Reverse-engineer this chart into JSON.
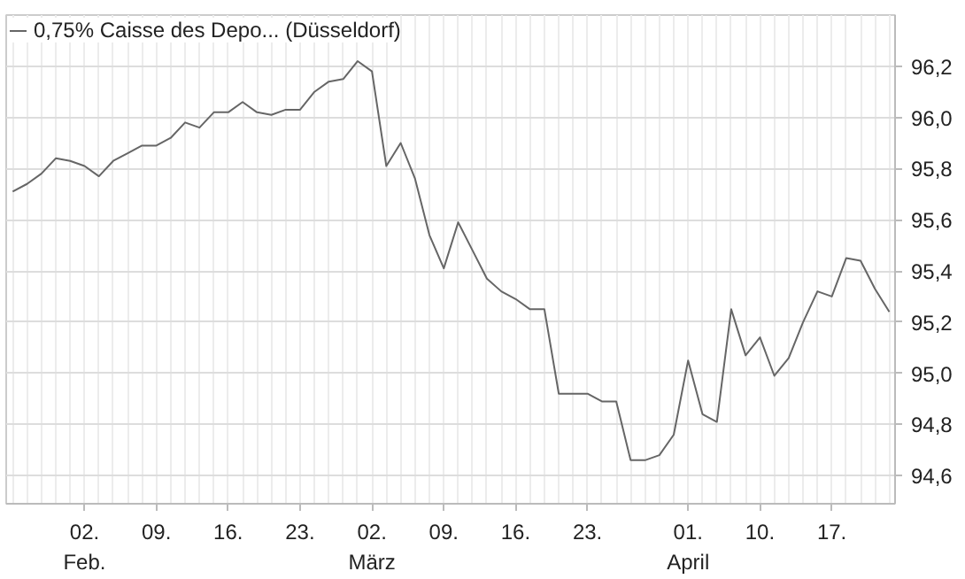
{
  "chart_data": {
    "type": "line",
    "categories": [
      null,
      null,
      null,
      null,
      null,
      "02.\nFeb.",
      null,
      null,
      null,
      null,
      "09.",
      null,
      null,
      null,
      null,
      "16.",
      null,
      null,
      null,
      null,
      "23.",
      null,
      null,
      null,
      null,
      "02.\nMärz",
      null,
      null,
      null,
      null,
      "09.",
      null,
      null,
      null,
      null,
      "16.",
      null,
      null,
      null,
      null,
      "23.",
      null,
      null,
      null,
      null,
      null,
      null,
      "01.\nApril",
      null,
      null,
      null,
      null,
      "10.",
      null,
      null,
      null,
      null,
      "17.",
      null,
      null,
      null,
      null
    ],
    "series": [
      {
        "name": "0,75% Caisse des Depo... (Düsseldorf)",
        "color": "#666666",
        "values": [
          95.71,
          95.74,
          95.78,
          95.84,
          95.83,
          95.81,
          95.77,
          95.83,
          95.86,
          95.89,
          95.89,
          95.92,
          95.98,
          95.96,
          96.02,
          96.02,
          96.06,
          96.02,
          96.01,
          96.03,
          96.03,
          96.1,
          96.14,
          96.15,
          96.22,
          96.18,
          95.81,
          95.9,
          95.76,
          95.54,
          95.41,
          95.59,
          95.48,
          95.37,
          95.32,
          95.29,
          95.25,
          95.25,
          94.92,
          94.92,
          94.92,
          94.89,
          94.89,
          94.66,
          94.66,
          94.68,
          94.76,
          95.05,
          94.84,
          94.81,
          95.25,
          95.07,
          95.14,
          94.99,
          95.06,
          95.2,
          95.32,
          95.3,
          95.45,
          95.44,
          95.33,
          95.24
        ]
      }
    ],
    "ylim": [
      94.49,
      96.4
    ],
    "yticks": [
      {
        "value": 94.6,
        "label": "94,6"
      },
      {
        "value": 94.8,
        "label": "94,8"
      },
      {
        "value": 95.0,
        "label": "95,0"
      },
      {
        "value": 95.2,
        "label": "95,2"
      },
      {
        "value": 95.4,
        "label": "95,4"
      },
      {
        "value": 95.6,
        "label": "95,6"
      },
      {
        "value": 95.8,
        "label": "95,8"
      },
      {
        "value": 96.0,
        "label": "96,0"
      },
      {
        "value": 96.2,
        "label": "96,2"
      }
    ],
    "grid": true,
    "legend": "top left",
    "marker": "none",
    "line_style": "solid"
  }
}
